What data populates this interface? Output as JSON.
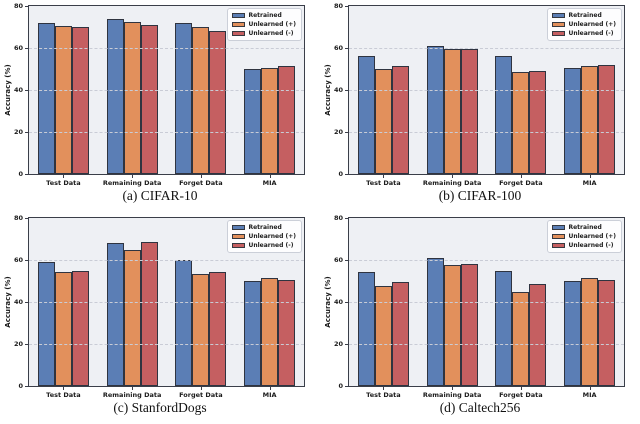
{
  "palette": {
    "series": [
      "#5b7eb5",
      "#e2905c",
      "#c55f61"
    ],
    "bar_edge": "#2f3440",
    "plot_bg": "#eef0f4",
    "grid": "#c9ccd6",
    "spine": "#3a3e49",
    "legend_bg": "#fdfdfe",
    "legend_border": "#cbcfd8",
    "text": "#1b1b1b"
  },
  "axis": {
    "ylabel": "Accuracy (%)",
    "yticks": [
      "0",
      "20",
      "40",
      "60",
      "80"
    ],
    "ylim": [
      0,
      80
    ],
    "grid": "dashed horizontal"
  },
  "legend": {
    "position": "upper right",
    "labels": [
      "Retrained",
      "Unlearned (+)",
      "Unlearned (-)"
    ]
  },
  "chart_data": [
    {
      "type": "bar",
      "title": "(a) CIFAR-10",
      "xlabel": "",
      "ylabel": "Accuracy (%)",
      "ylim": [
        0,
        80
      ],
      "categories": [
        "Test Data",
        "Remaining Data",
        "Forget Data",
        "MIA"
      ],
      "series": [
        {
          "name": "Retrained",
          "values": [
            72,
            74,
            72,
            50
          ]
        },
        {
          "name": "Unlearned (+)",
          "values": [
            70.5,
            72.5,
            70,
            50.5
          ]
        },
        {
          "name": "Unlearned (-)",
          "values": [
            70,
            71,
            68,
            51.5
          ]
        }
      ]
    },
    {
      "type": "bar",
      "title": "(b) CIFAR-100",
      "xlabel": "",
      "ylabel": "Accuracy (%)",
      "ylim": [
        0,
        80
      ],
      "categories": [
        "Test Data",
        "Remaining Data",
        "Forget Data",
        "MIA"
      ],
      "series": [
        {
          "name": "Retrained",
          "values": [
            56,
            61,
            56,
            50.5
          ]
        },
        {
          "name": "Unlearned (+)",
          "values": [
            50,
            59.5,
            48.5,
            51.5
          ]
        },
        {
          "name": "Unlearned (-)",
          "values": [
            51.5,
            59.5,
            49,
            52
          ]
        }
      ]
    },
    {
      "type": "bar",
      "title": "(c) StanfordDogs",
      "xlabel": "",
      "ylabel": "Accuracy (%)",
      "ylim": [
        0,
        80
      ],
      "categories": [
        "Test Data",
        "Remaining Data",
        "Forget Data",
        "MIA"
      ],
      "series": [
        {
          "name": "Retrained",
          "values": [
            59,
            68,
            60,
            50
          ]
        },
        {
          "name": "Unlearned (+)",
          "values": [
            54.5,
            65,
            53.5,
            51.5
          ]
        },
        {
          "name": "Unlearned (-)",
          "values": [
            55,
            68.5,
            54.5,
            50.5
          ]
        }
      ]
    },
    {
      "type": "bar",
      "title": "(d) Caltech256",
      "xlabel": "",
      "ylabel": "Accuracy (%)",
      "ylim": [
        0,
        80
      ],
      "categories": [
        "Test Data",
        "Remaining Data",
        "Forget Data",
        "MIA"
      ],
      "series": [
        {
          "name": "Retrained",
          "values": [
            54.5,
            61,
            55,
            50
          ]
        },
        {
          "name": "Unlearned (+)",
          "values": [
            47.5,
            57.5,
            45,
            51.5
          ]
        },
        {
          "name": "Unlearned (-)",
          "values": [
            49.5,
            58,
            48.5,
            50.5
          ]
        }
      ]
    }
  ]
}
